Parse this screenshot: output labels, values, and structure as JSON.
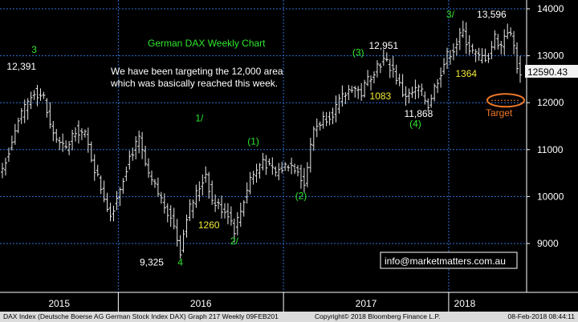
{
  "colors": {
    "background": "#000000",
    "candles": "#e8e8e8",
    "grid": "#2f6fd0",
    "green_text": "#2ee82e",
    "white_text": "#ffffff",
    "yellow_text": "#f2ea34",
    "orange": "#f0782a",
    "price_box": "#f2f2f2"
  },
  "chart_data": {
    "type": "ohlc",
    "title": "German DAX Weekly Chart",
    "commentary": [
      "We have been targeting the 12,000 area",
      "which was basically reached this week."
    ],
    "y_ticks": [
      "14000",
      "13000",
      "12000",
      "11000",
      "10000",
      "9000"
    ],
    "ylim": [
      8200,
      14150
    ],
    "x_ticks": [
      "2015",
      "2016",
      "2017",
      "2018"
    ],
    "last_price": "12590.43",
    "target": {
      "label": "Target",
      "value": 12050
    },
    "weeks": 164,
    "anchor_closes": [
      [
        0,
        10600
      ],
      [
        5,
        11600
      ],
      [
        10,
        12250
      ],
      [
        13,
        12100
      ],
      [
        15,
        11500
      ],
      [
        18,
        11100
      ],
      [
        20,
        11000
      ],
      [
        23,
        11450
      ],
      [
        26,
        11300
      ],
      [
        29,
        10600
      ],
      [
        32,
        10000
      ],
      [
        34,
        9600
      ],
      [
        37,
        10200
      ],
      [
        40,
        10850
      ],
      [
        43,
        11200
      ],
      [
        46,
        10400
      ],
      [
        48,
        10200
      ],
      [
        51,
        9800
      ],
      [
        53,
        9600
      ],
      [
        55,
        9100
      ],
      [
        56,
        8850
      ],
      [
        58,
        9600
      ],
      [
        62,
        10200
      ],
      [
        64,
        10500
      ],
      [
        66,
        9900
      ],
      [
        68,
        9800
      ],
      [
        71,
        9650
      ],
      [
        73,
        9300
      ],
      [
        75,
        9700
      ],
      [
        78,
        10400
      ],
      [
        80,
        10550
      ],
      [
        82,
        10800
      ],
      [
        84,
        10600
      ],
      [
        86,
        10500
      ],
      [
        90,
        10700
      ],
      [
        93,
        10600
      ],
      [
        95,
        10250
      ],
      [
        98,
        11450
      ],
      [
        101,
        11650
      ],
      [
        104,
        11800
      ],
      [
        107,
        12100
      ],
      [
        110,
        12350
      ],
      [
        113,
        12200
      ],
      [
        115,
        12500
      ],
      [
        118,
        12800
      ],
      [
        120,
        12900
      ],
      [
        123,
        12700
      ],
      [
        126,
        12200
      ],
      [
        128,
        12150
      ],
      [
        131,
        12300
      ],
      [
        134,
        11950
      ],
      [
        137,
        12500
      ],
      [
        140,
        13000
      ],
      [
        142,
        13150
      ],
      [
        144,
        13400
      ],
      [
        145,
        13500
      ],
      [
        147,
        13150
      ],
      [
        150,
        12950
      ],
      [
        153,
        13000
      ],
      [
        155,
        13400
      ],
      [
        157,
        13200
      ],
      [
        158,
        13450
      ],
      [
        159,
        13550
      ],
      [
        160,
        13400
      ],
      [
        161,
        13200
      ],
      [
        162,
        12800
      ],
      [
        163,
        12590.43
      ]
    ],
    "annotations": {
      "green": [
        {
          "text": "3",
          "x": 10,
          "y": 13060
        },
        {
          "text": "1/",
          "x": 62,
          "y": 11600
        },
        {
          "text": "(1)",
          "x": 79,
          "y": 11110
        },
        {
          "text": "(2)",
          "x": 94,
          "y": 9950
        },
        {
          "text": "2/",
          "x": 73,
          "y": 8980
        },
        {
          "text": "4",
          "x": 56,
          "y": 8530
        },
        {
          "text": "(3)",
          "x": 112,
          "y": 13000
        },
        {
          "text": "(4)",
          "x": 130,
          "y": 11480
        },
        {
          "text": "3/",
          "x": 141,
          "y": 13810
        }
      ],
      "white": [
        {
          "text": "12,391",
          "x": 6,
          "y": 12700
        },
        {
          "text": "9,325",
          "x": 47,
          "y": 8530
        },
        {
          "text": "12,951",
          "x": 120,
          "y": 13150
        },
        {
          "text": "11,868",
          "x": 131,
          "y": 11700
        },
        {
          "text": "13,596",
          "x": 154,
          "y": 13810
        }
      ],
      "yellow": [
        {
          "text": "1260",
          "x": 65,
          "y": 9320
        },
        {
          "text": "1083",
          "x": 119,
          "y": 12070
        },
        {
          "text": "1364",
          "x": 146,
          "y": 12550
        }
      ]
    }
  },
  "email": "info@marketmatters.com.au",
  "footer": {
    "left": "DAX Index (Deutsche Boerse AG German Stock Index DAX) Graph 217  Weekly 09FEB201",
    "middle": "Copyright© 2018 Bloomberg Finance L.P.",
    "right": "08-Feb-2018 08:44:11"
  }
}
